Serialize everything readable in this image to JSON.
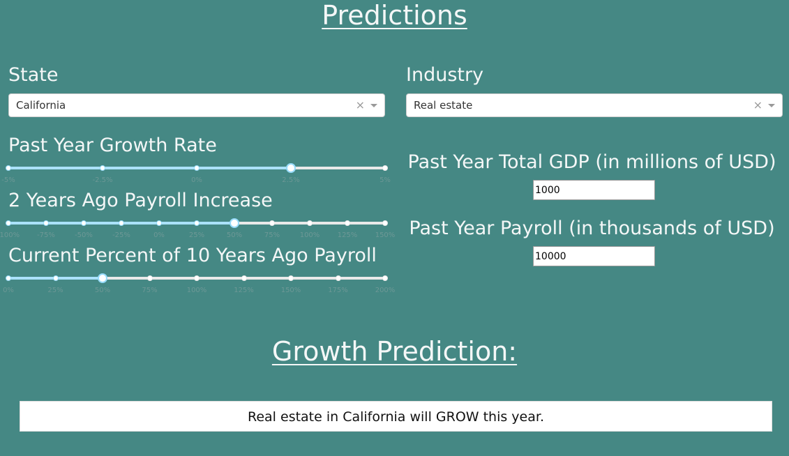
{
  "page": {
    "title": "Predictions",
    "subtitle": "Growth Prediction:"
  },
  "state": {
    "label": "State",
    "value": "California",
    "clear": "×"
  },
  "industry": {
    "label": "Industry",
    "value": "Real estate",
    "clear": "×"
  },
  "sliders": [
    {
      "label": "Past Year Growth Rate",
      "marks": [
        "-5%",
        "-2.5%",
        "0%",
        "2.5%",
        "5%"
      ],
      "min": -5,
      "max": 5,
      "value": 2.5
    },
    {
      "label": "2 Years Ago Payroll Increase",
      "marks": [
        "-100%",
        "-75%",
        "-50%",
        "-25%",
        "0%",
        "25%",
        "50%",
        "75%",
        "100%",
        "125%",
        "150%"
      ],
      "min": -100,
      "max": 150,
      "value": 50
    },
    {
      "label": "Current Percent of 10 Years Ago Payroll",
      "marks": [
        "0%",
        "25%",
        "50%",
        "75%",
        "100%",
        "125%",
        "150%",
        "175%",
        "200%"
      ],
      "min": 0,
      "max": 200,
      "value": 50
    }
  ],
  "gdp": {
    "label": "Past Year Total GDP (in millions of USD)",
    "value": "1000"
  },
  "payroll": {
    "label": "Past Year Payroll (in thousands of USD)",
    "value": "10000"
  },
  "result": {
    "text": "Real estate in California will GROW this year."
  },
  "colors": {
    "background": "#458884",
    "slider_track": "#abe2fb",
    "slider_handle": "#96dbfa"
  }
}
